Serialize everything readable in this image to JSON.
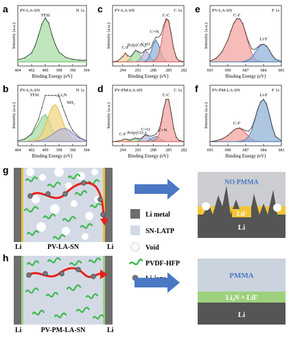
{
  "chart_data": [
    {
      "panel": "a",
      "type": "line",
      "sample": "PV-LA-SN",
      "region": "N 1s",
      "xlabel": "Binding Energy (eV)",
      "ylabel": "Intensity (a.u.)",
      "xlim": [
        404,
        394
      ],
      "ticks": [
        "404",
        "402",
        "400",
        "398",
        "396",
        "394"
      ],
      "x": [
        404,
        403,
        402,
        401.5,
        401,
        400.5,
        400,
        399.5,
        399,
        398.5,
        398,
        397,
        396,
        395,
        394
      ],
      "series": [
        {
          "name": "TFSI",
          "peak_label": "TFSI",
          "color": "#5cbf63",
          "fill": "#a8dca6",
          "values": [
            0.05,
            0.09,
            0.2,
            0.36,
            0.6,
            0.86,
            1.0,
            0.88,
            0.6,
            0.38,
            0.22,
            0.1,
            0.06,
            0.04,
            0.04
          ]
        }
      ]
    },
    {
      "panel": "b",
      "type": "line",
      "sample": "PV-LA-SN",
      "region": "N 1s",
      "xlabel": "Binding Energy (eV)",
      "ylabel": "Intensity (a.u.)",
      "xlim": [
        404,
        394
      ],
      "ticks": [
        "404",
        "402",
        "400",
        "398",
        "396",
        "394"
      ],
      "x": [
        404,
        403,
        402,
        401,
        400.5,
        400,
        399.5,
        399,
        398.5,
        398,
        397.5,
        397,
        396.5,
        396,
        395,
        394
      ],
      "series": [
        {
          "name": "TFSI",
          "peak_label": "TFSI",
          "color": "#5cbf63",
          "fill": "#a8dca6",
          "values": [
            0.02,
            0.06,
            0.16,
            0.4,
            0.55,
            0.62,
            0.5,
            0.3,
            0.14,
            0.06,
            0.02,
            0.01,
            0.0,
            0.0,
            0.0,
            0.0
          ]
        },
        {
          "name": "Li3N",
          "peak_label": "Li₃N",
          "color": "#e2b33a",
          "fill": "#f2d587",
          "values": [
            0.0,
            0.0,
            0.02,
            0.08,
            0.18,
            0.36,
            0.6,
            0.8,
            0.84,
            0.7,
            0.48,
            0.28,
            0.14,
            0.06,
            0.01,
            0.0
          ]
        },
        {
          "name": "NH3",
          "peak_label": "NH₃",
          "color": "#7d7fb0",
          "fill": "#b9bbd8",
          "values": [
            0.0,
            0.0,
            0.0,
            0.02,
            0.04,
            0.07,
            0.11,
            0.16,
            0.22,
            0.27,
            0.3,
            0.3,
            0.26,
            0.19,
            0.08,
            0.02
          ]
        }
      ]
    },
    {
      "panel": "c",
      "type": "line",
      "sample": "PV-LA-SN",
      "region": "C 1s",
      "xlabel": "Binding Energy (eV)",
      "ylabel": "Intensity (a.u.)",
      "xlim": [
        296,
        282
      ],
      "ticks": [
        "294",
        "291",
        "288",
        "285",
        "282"
      ],
      "x": [
        296,
        295,
        294,
        293.5,
        293,
        292.5,
        292,
        291.5,
        291,
        290.5,
        290,
        289.5,
        289,
        288.5,
        288,
        287.5,
        287,
        286.5,
        286,
        285.5,
        285,
        284.5,
        284,
        283.5,
        283,
        282
      ],
      "series": [
        {
          "name": "C-F",
          "peak_label": "C-F",
          "color": "#e8a15a",
          "fill": "#f6cf9f",
          "values": [
            0,
            0.02,
            0.12,
            0.2,
            0.12,
            0.04,
            0,
            0,
            0,
            0,
            0,
            0,
            0,
            0,
            0,
            0,
            0,
            0,
            0,
            0,
            0,
            0,
            0,
            0,
            0,
            0
          ]
        },
        {
          "name": "Poly(CO3)",
          "peak_label": "Poly(CO₃)",
          "color": "#5cbf63",
          "fill": "#a8dca6",
          "values": [
            0,
            0,
            0,
            0,
            0.02,
            0.08,
            0.18,
            0.26,
            0.22,
            0.12,
            0.04,
            0,
            0,
            0,
            0,
            0,
            0,
            0,
            0,
            0,
            0,
            0,
            0,
            0,
            0,
            0
          ]
        },
        {
          "name": "C=O",
          "peak_label": "C=O",
          "color": "#7d7fb0",
          "fill": "#b9bbd8",
          "values": [
            0,
            0,
            0,
            0,
            0,
            0,
            0,
            0,
            0.02,
            0.08,
            0.18,
            0.26,
            0.2,
            0.1,
            0.03,
            0,
            0,
            0,
            0,
            0,
            0,
            0,
            0,
            0,
            0,
            0
          ]
        },
        {
          "name": "C=N",
          "peak_label": "C=N",
          "color": "#3f6faa",
          "fill": "#93b3d8",
          "values": [
            0,
            0,
            0,
            0,
            0,
            0,
            0,
            0,
            0,
            0,
            0,
            0.02,
            0.08,
            0.22,
            0.4,
            0.5,
            0.4,
            0.22,
            0.08,
            0.02,
            0,
            0,
            0,
            0,
            0,
            0
          ]
        },
        {
          "name": "C-C",
          "peak_label": "C-C",
          "color": "#d9534f",
          "fill": "#f2a6a2",
          "values": [
            0,
            0,
            0,
            0,
            0,
            0,
            0,
            0,
            0,
            0,
            0,
            0,
            0,
            0,
            0.02,
            0.06,
            0.16,
            0.4,
            0.74,
            0.96,
            0.94,
            0.64,
            0.3,
            0.1,
            0.03,
            0
          ]
        }
      ]
    },
    {
      "panel": "d",
      "type": "line",
      "sample": "PV-PM-LA-SN",
      "region": "C 1s",
      "xlabel": "Binding Energy (eV)",
      "ylabel": "Intensity (a.u.)",
      "xlim": [
        296,
        282
      ],
      "ticks": [
        "294",
        "291",
        "288",
        "285",
        "282"
      ],
      "x": [
        296,
        295,
        294,
        293.5,
        293,
        292.5,
        292,
        291.5,
        291,
        290.5,
        290,
        289.5,
        289,
        288.5,
        288,
        287.5,
        287,
        286.5,
        286,
        285.5,
        285,
        284.5,
        284,
        283.5,
        283,
        282
      ],
      "series": [
        {
          "name": "C-F",
          "peak_label": "C-F",
          "color": "#e8a15a",
          "fill": "#f6cf9f",
          "values": [
            0,
            0.01,
            0.04,
            0.06,
            0.04,
            0.01,
            0,
            0,
            0,
            0,
            0,
            0,
            0,
            0,
            0,
            0,
            0,
            0,
            0,
            0,
            0,
            0,
            0,
            0,
            0,
            0
          ]
        },
        {
          "name": "Poly(CO3)",
          "peak_label": "Poly(CO₃)",
          "color": "#5cbf63",
          "fill": "#a8dca6",
          "values": [
            0,
            0,
            0,
            0,
            0.01,
            0.03,
            0.06,
            0.08,
            0.06,
            0.03,
            0.01,
            0,
            0,
            0,
            0,
            0,
            0,
            0,
            0,
            0,
            0,
            0,
            0,
            0,
            0,
            0
          ]
        },
        {
          "name": "C=O",
          "peak_label": "C=O",
          "color": "#7d7fb0",
          "fill": "#b9bbd8",
          "values": [
            0,
            0,
            0,
            0,
            0,
            0,
            0,
            0,
            0.01,
            0.04,
            0.1,
            0.16,
            0.12,
            0.06,
            0.02,
            0,
            0,
            0,
            0,
            0,
            0,
            0,
            0,
            0,
            0,
            0
          ]
        },
        {
          "name": "C=N",
          "peak_label": "C=N",
          "color": "#3f6faa",
          "fill": "#93b3d8",
          "values": [
            0,
            0,
            0,
            0,
            0,
            0,
            0,
            0,
            0,
            0,
            0,
            0,
            0.02,
            0.06,
            0.1,
            0.12,
            0.1,
            0.05,
            0.02,
            0,
            0,
            0,
            0,
            0,
            0,
            0
          ]
        },
        {
          "name": "C-C",
          "peak_label": "C-C",
          "color": "#d9534f",
          "fill": "#f2a6a2",
          "values": [
            0,
            0,
            0,
            0,
            0,
            0,
            0,
            0,
            0,
            0,
            0,
            0,
            0,
            0,
            0.02,
            0.05,
            0.14,
            0.38,
            0.72,
            0.96,
            0.96,
            0.66,
            0.3,
            0.1,
            0.03,
            0
          ]
        }
      ]
    },
    {
      "panel": "e",
      "type": "line",
      "sample": "PV-LA-SN",
      "region": "F 1s",
      "xlabel": "Binding Energy (eV)",
      "ylabel": "Intensity (a.u.)",
      "xlim": [
        693,
        681
      ],
      "ticks": [
        "693",
        "690",
        "687",
        "684",
        "681"
      ],
      "x": [
        693,
        692,
        691,
        690,
        689.5,
        689,
        688.5,
        688,
        687.5,
        687,
        686.5,
        686,
        685.5,
        685,
        684.5,
        684,
        683.5,
        683,
        682.5,
        682,
        681
      ],
      "series": [
        {
          "name": "C-F",
          "peak_label": "C-F",
          "color": "#d9534f",
          "fill": "#f2a6a2",
          "values": [
            0.02,
            0.08,
            0.22,
            0.5,
            0.7,
            0.88,
            0.98,
            0.98,
            0.86,
            0.64,
            0.4,
            0.2,
            0.08,
            0.03,
            0.01,
            0,
            0,
            0,
            0,
            0,
            0
          ]
        },
        {
          "name": "Li-F",
          "peak_label": "Li-F",
          "color": "#3f6faa",
          "fill": "#93b3d8",
          "values": [
            0,
            0,
            0,
            0,
            0,
            0,
            0,
            0,
            0.01,
            0.02,
            0.05,
            0.1,
            0.2,
            0.3,
            0.38,
            0.4,
            0.36,
            0.26,
            0.14,
            0.06,
            0.01
          ]
        }
      ]
    },
    {
      "panel": "f",
      "type": "line",
      "sample": "PV-PM-LA-SN",
      "region": "F 1s",
      "xlabel": "Binding Energy (eV)",
      "ylabel": "Intensity (a.u.)",
      "xlim": [
        693,
        681
      ],
      "ticks": [
        "693",
        "690",
        "687",
        "684",
        "681"
      ],
      "x": [
        693,
        692,
        691,
        690,
        689.5,
        689,
        688.5,
        688,
        687.5,
        687,
        686.5,
        686,
        685.5,
        685,
        684.5,
        684,
        683.5,
        683,
        682.5,
        682,
        681
      ],
      "series": [
        {
          "name": "C-F",
          "peak_label": "C-F",
          "color": "#d9534f",
          "fill": "#f2a6a2",
          "values": [
            0,
            0.02,
            0.06,
            0.14,
            0.2,
            0.26,
            0.3,
            0.3,
            0.26,
            0.2,
            0.12,
            0.06,
            0.02,
            0.01,
            0,
            0,
            0,
            0,
            0,
            0,
            0
          ]
        },
        {
          "name": "Li-F",
          "peak_label": "Li-F",
          "color": "#3f6faa",
          "fill": "#93b3d8",
          "values": [
            0,
            0,
            0,
            0,
            0,
            0,
            0,
            0.01,
            0.02,
            0.05,
            0.12,
            0.26,
            0.48,
            0.72,
            0.9,
            0.96,
            0.86,
            0.6,
            0.32,
            0.12,
            0.02
          ]
        }
      ]
    }
  ],
  "schematic": {
    "g": {
      "letter": "g",
      "cell_label": "PV-LA-SN",
      "left_electrode": "Li",
      "right_electrode": "Li",
      "interface_top_label": "NO PMMA",
      "interface_layer_label": "LiF",
      "interface_base_label": "Li"
    },
    "h": {
      "letter": "h",
      "cell_label": "PV-PM-LA-SN",
      "left_electrode": "Li",
      "right_electrode": "Li",
      "interface_top_label": "PMMA",
      "interface_layer_label": "Li₃N + LiF",
      "interface_base_label": "Li"
    },
    "legend": [
      "Li metal",
      "SN-LATP",
      "Void",
      "PVDF-HFP",
      "Li-ions"
    ],
    "colors": {
      "li_metal": "#6e6e6e",
      "sn_latp": "#d3dae6",
      "pvdf": "#3cb84a",
      "arrow_red": "#e8201c",
      "arrow_blue": "#4a78c4",
      "lif_yellow": "#f3c537",
      "li3n_green": "#9ed17e",
      "electrode_edge": "#e6c23a"
    }
  }
}
